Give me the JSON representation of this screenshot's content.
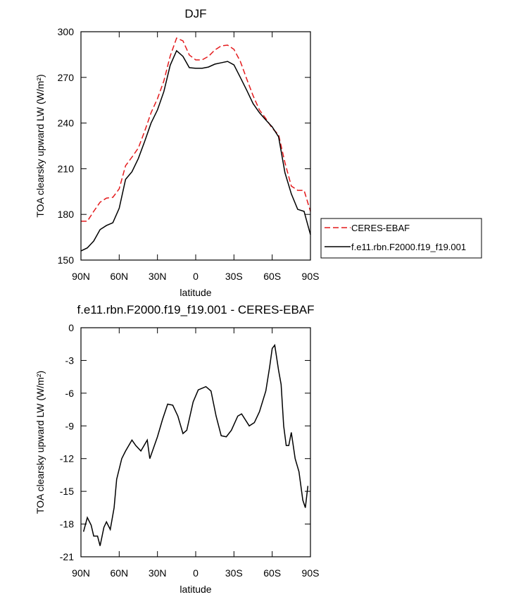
{
  "chart_data": [
    {
      "type": "line",
      "title": "DJF",
      "xlabel": "latitude",
      "ylabel": "TOA clearsky upward LW (W/m²)",
      "xlim": [
        -90,
        90
      ],
      "xticks": [
        {
          "value": -90,
          "label": "90N"
        },
        {
          "value": -60,
          "label": "60N"
        },
        {
          "value": -30,
          "label": "30N"
        },
        0,
        {
          "value": 30,
          "label": "30S"
        },
        {
          "value": 60,
          "label": "60S"
        },
        {
          "value": 90,
          "label": "90S"
        }
      ],
      "ylim": [
        150,
        300
      ],
      "yticks": [
        150,
        180,
        210,
        240,
        270,
        300
      ],
      "legend": "outside-right",
      "x": [
        -90,
        -85,
        -80,
        -75,
        -70,
        -65,
        -60,
        -55,
        -50,
        -45,
        -40,
        -35,
        -30,
        -25,
        -20,
        -15,
        -10,
        -5,
        0,
        5,
        10,
        15,
        20,
        25,
        30,
        35,
        40,
        45,
        50,
        55,
        60,
        65,
        70,
        75,
        80,
        85,
        90
      ],
      "series": [
        {
          "name": "CERES-EBAF",
          "color": "#e41a1c",
          "style": "dashed",
          "values": [
            175.5,
            175.5,
            182,
            188,
            190.7,
            191.2,
            196.8,
            212,
            217.6,
            223.6,
            234.7,
            246.8,
            256,
            267.6,
            284,
            295.8,
            294,
            284.7,
            281.5,
            281.5,
            283.8,
            288,
            290.7,
            291.2,
            288.4,
            280.5,
            269,
            258,
            248.6,
            243,
            236.6,
            232.4,
            214,
            198.6,
            195.8,
            195.8,
            182
          ]
        },
        {
          "name": "f.e11.rbn.F2000.f19_f19.001",
          "color": "#000000",
          "style": "solid",
          "values": [
            156,
            158,
            162.5,
            170,
            172.7,
            174.5,
            184,
            203,
            208,
            216.7,
            228,
            240,
            248.6,
            260.6,
            278,
            287.5,
            283.8,
            276.4,
            276,
            276,
            276.8,
            278.7,
            279.6,
            280.5,
            278.2,
            270,
            261.6,
            252.8,
            246.8,
            242,
            237.5,
            231,
            207.4,
            193.5,
            183.3,
            182,
            166.7
          ]
        }
      ]
    },
    {
      "type": "line",
      "title": "f.e11.rbn.F2000.f19_f19.001 - CERES-EBAF",
      "xlabel": "latitude",
      "ylabel": "TOA clearsky upward LW (W/m²)",
      "xlim": [
        -90,
        90
      ],
      "xticks": [
        {
          "value": -90,
          "label": "90N"
        },
        {
          "value": -60,
          "label": "60N"
        },
        {
          "value": -30,
          "label": "30N"
        },
        0,
        {
          "value": 30,
          "label": "30S"
        },
        {
          "value": 60,
          "label": "60S"
        },
        {
          "value": 90,
          "label": "90S"
        }
      ],
      "ylim": [
        -21,
        0
      ],
      "yticks": [
        -21,
        -18,
        -15,
        -12,
        -9,
        -6,
        -3,
        0
      ],
      "x": [
        -88,
        -85,
        -82,
        -80,
        -77,
        -75,
        -72,
        -70,
        -67,
        -64,
        -62,
        -58,
        -55,
        -50,
        -47,
        -43,
        -38,
        -36,
        -30,
        -26,
        -22,
        -18,
        -14,
        -10,
        -7,
        -2,
        2,
        8,
        12,
        16,
        20,
        24,
        28,
        33,
        36,
        42,
        46,
        50,
        55,
        58,
        60,
        62,
        65,
        67,
        69,
        71,
        73,
        75,
        78,
        81,
        84,
        86,
        88
      ],
      "series": [
        {
          "color": "#000000",
          "style": "solid",
          "values": [
            -18.7,
            -17.4,
            -18.1,
            -19.1,
            -19.1,
            -20,
            -18.3,
            -17.8,
            -18.5,
            -16.5,
            -13.9,
            -12,
            -11.3,
            -10.3,
            -10.8,
            -11.3,
            -10.3,
            -12,
            -10,
            -8.4,
            -7,
            -7.1,
            -8.1,
            -9.7,
            -9.4,
            -6.8,
            -5.7,
            -5.4,
            -5.8,
            -8.1,
            -9.9,
            -10,
            -9.4,
            -8.1,
            -7.9,
            -9,
            -8.7,
            -7.7,
            -5.8,
            -3.6,
            -1.9,
            -1.6,
            -3.9,
            -5.2,
            -9,
            -10.8,
            -10.8,
            -9.6,
            -12,
            -13.2,
            -15.8,
            -16.5,
            -14.5
          ]
        }
      ]
    }
  ]
}
